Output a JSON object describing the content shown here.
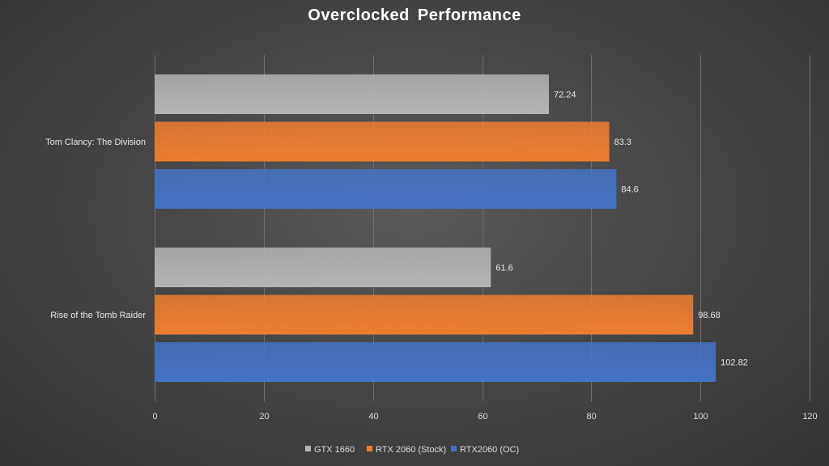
{
  "chart_data": {
    "type": "bar",
    "orientation": "horizontal",
    "title": "Overclocked  Performance",
    "categories": [
      "Tom Clancy: The Division",
      "Rise of the Tomb Raider"
    ],
    "series": [
      {
        "name": "GTX 1660",
        "values": [
          72.24,
          61.6
        ],
        "color": "#b4b4b4"
      },
      {
        "name": "RTX 2060 (Stock)",
        "values": [
          83.3,
          98.68
        ],
        "color": "#ed7d31"
      },
      {
        "name": "RTX2060 (OC)",
        "values": [
          84.6,
          102.82
        ],
        "color": "#4472c4"
      }
    ],
    "data_labels": [
      [
        "72.24",
        "61.6"
      ],
      [
        "83.3",
        "98.68"
      ],
      [
        "84.6",
        "102.82"
      ]
    ],
    "xlim": [
      0,
      120
    ],
    "xticks": [
      0,
      20,
      40,
      60,
      80,
      100,
      120
    ],
    "grid": true,
    "legend": "bottom"
  }
}
